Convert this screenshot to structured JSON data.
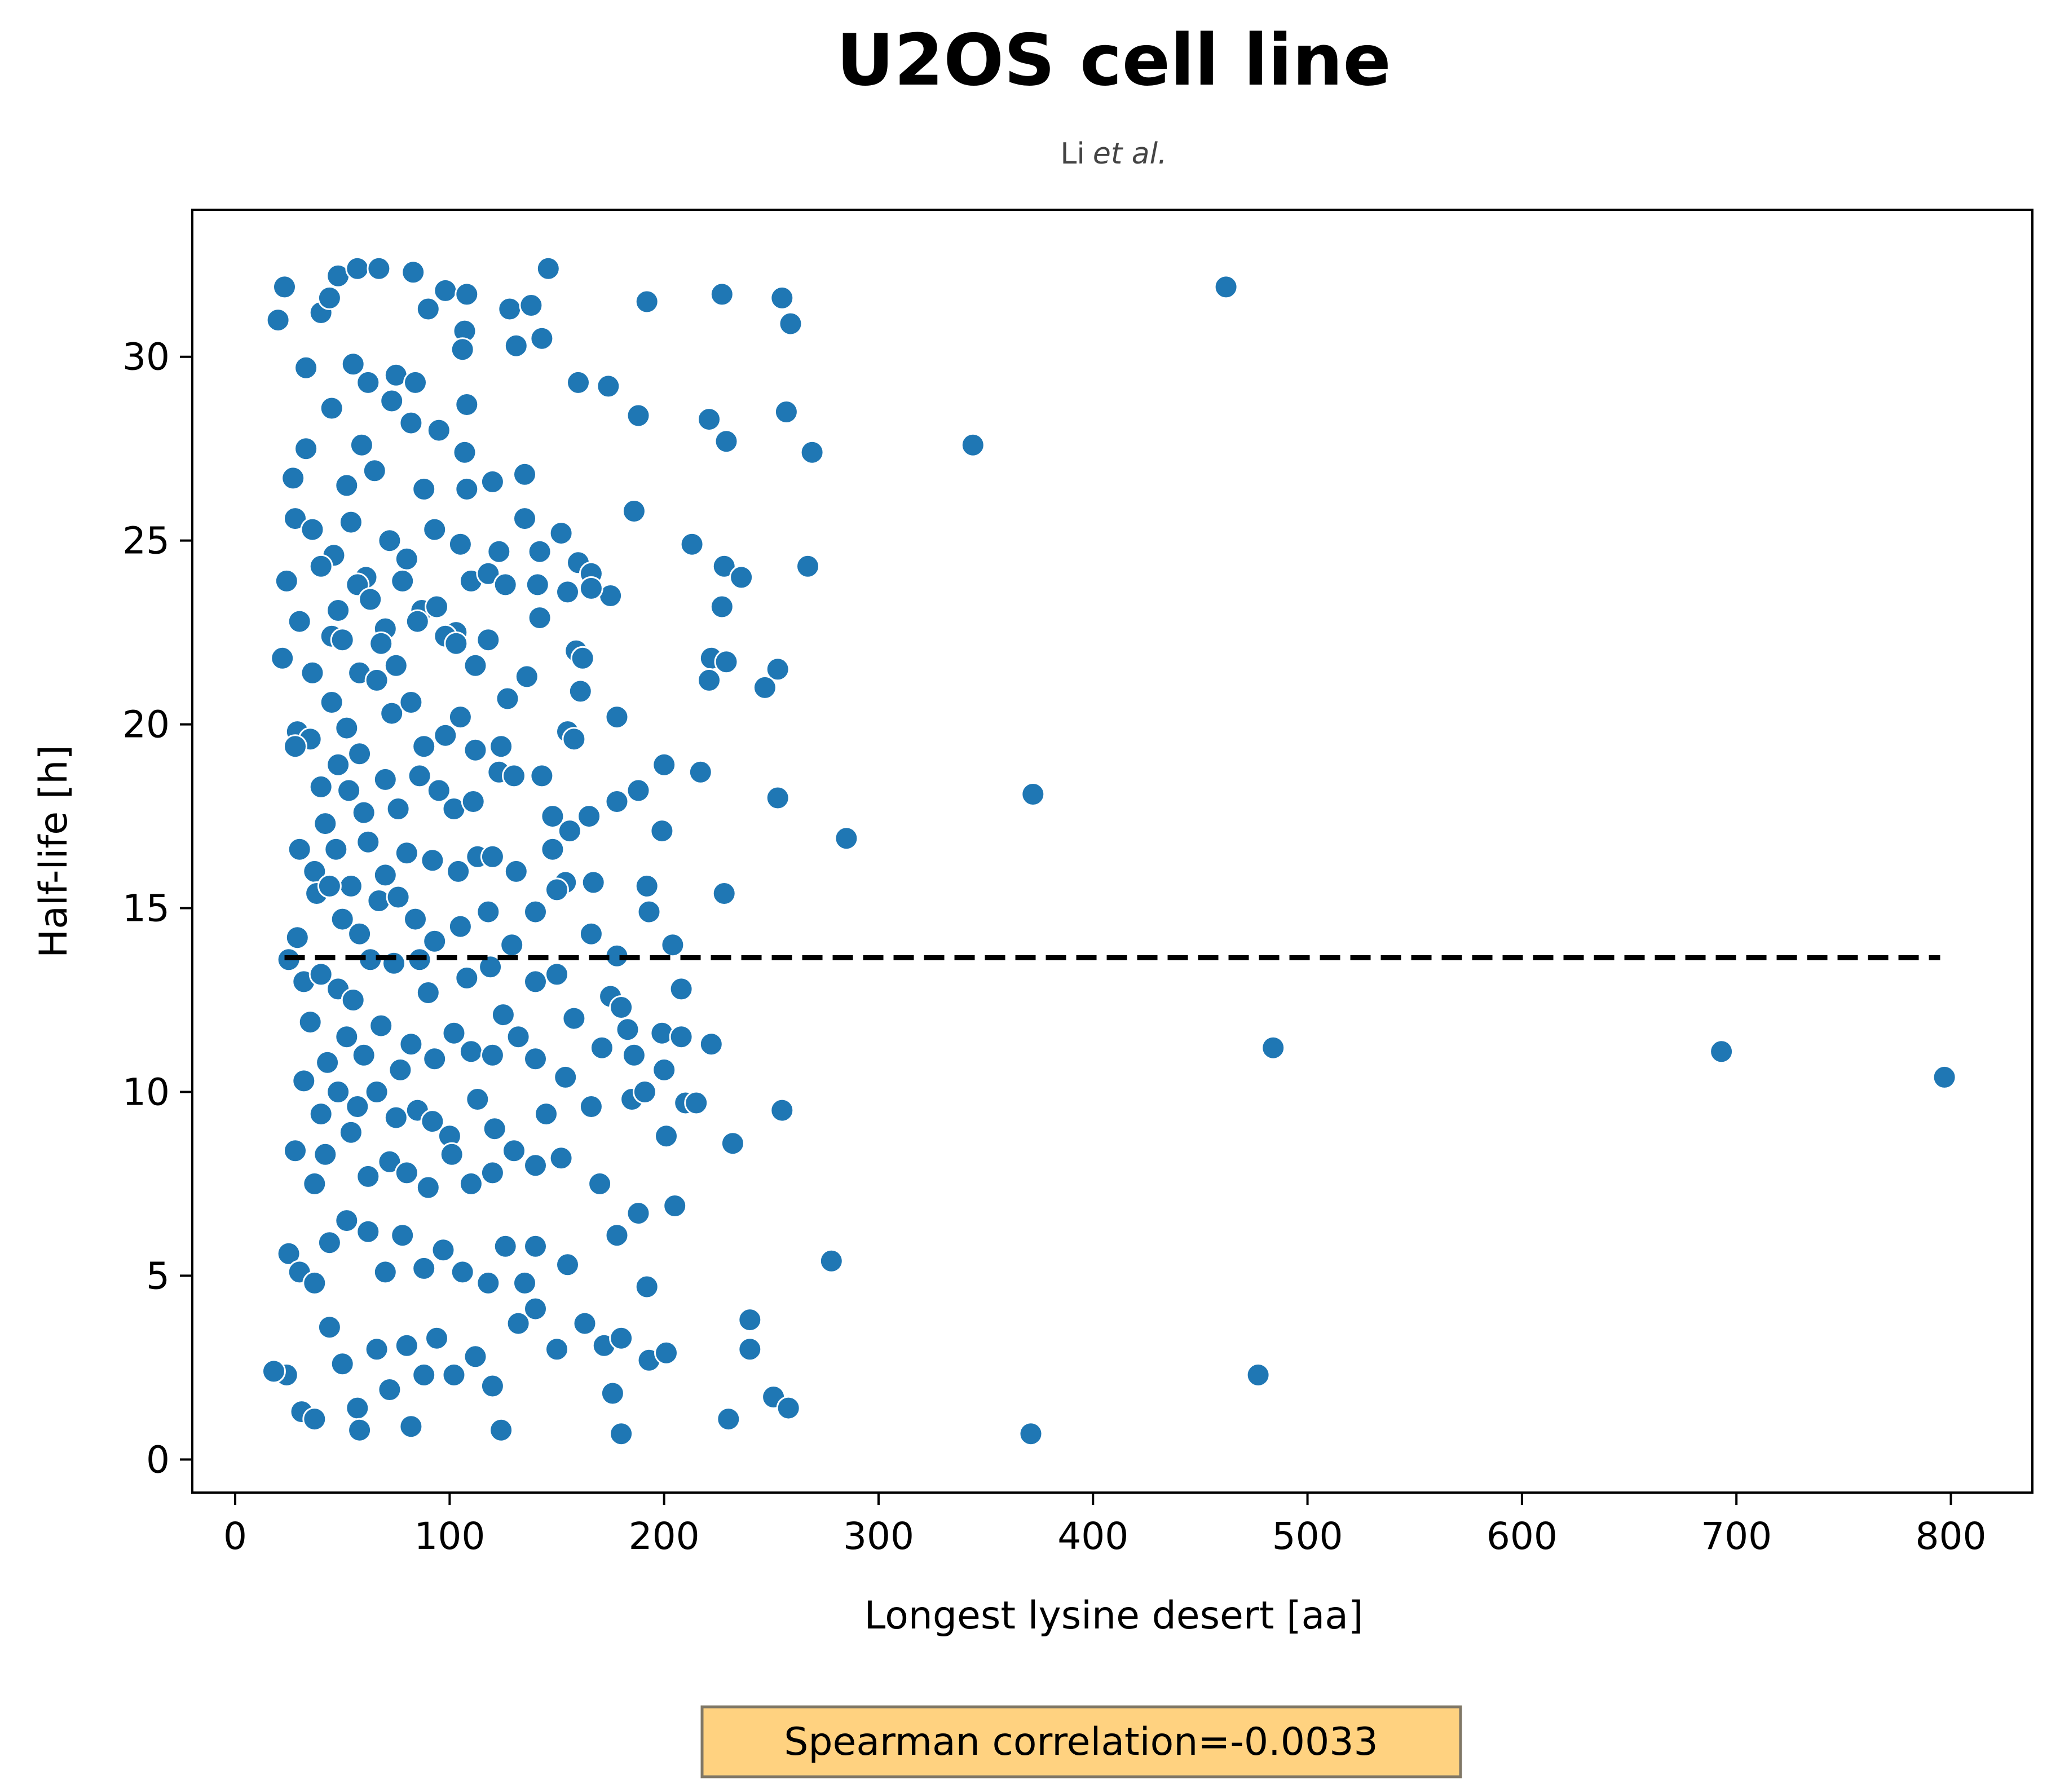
{
  "chart_data": {
    "type": "scatter",
    "title": "U2OS cell line",
    "subtitle": "Li",
    "subtitle_italic": "et al.",
    "xlabel": "Longest lysine desert [aa]",
    "ylabel": "Half-life [h]",
    "xlim": [
      -20,
      838
    ],
    "ylim": [
      -0.9,
      34.0
    ],
    "xticks": [
      0,
      100,
      200,
      300,
      400,
      500,
      600,
      700,
      800
    ],
    "yticks": [
      0,
      5,
      10,
      15,
      20,
      25,
      30
    ],
    "grid": false,
    "legend": "none",
    "marker_color": "#1f77b4",
    "annotation": "Spearman correlation=-0.0033",
    "annotation_bg": "#ffd280",
    "mean_line": {
      "y": 13.65,
      "x_start": 23,
      "x_end": 795,
      "style": "dashed",
      "color": "#000000"
    },
    "points": [
      [
        23,
        31.9
      ],
      [
        20,
        31.0
      ],
      [
        40,
        31.2
      ],
      [
        44,
        31.6
      ],
      [
        48,
        32.2
      ],
      [
        57,
        32.4
      ],
      [
        67,
        32.4
      ],
      [
        83,
        32.3
      ],
      [
        98,
        31.8
      ],
      [
        108,
        31.7
      ],
      [
        128,
        31.3
      ],
      [
        138,
        31.4
      ],
      [
        146,
        32.4
      ],
      [
        192,
        31.5
      ],
      [
        227,
        31.7
      ],
      [
        255,
        31.6
      ],
      [
        259,
        30.9
      ],
      [
        462,
        31.9
      ],
      [
        33,
        29.7
      ],
      [
        55,
        29.8
      ],
      [
        62,
        29.3
      ],
      [
        75,
        29.5
      ],
      [
        84,
        29.3
      ],
      [
        90,
        31.3
      ],
      [
        107,
        30.7
      ],
      [
        106,
        30.2
      ],
      [
        131,
        30.3
      ],
      [
        143,
        30.5
      ],
      [
        160,
        29.3
      ],
      [
        174,
        29.2
      ],
      [
        188,
        28.4
      ],
      [
        221,
        28.3
      ],
      [
        229,
        27.7
      ],
      [
        257,
        28.5
      ],
      [
        269,
        27.4
      ],
      [
        344,
        27.6
      ],
      [
        27,
        26.7
      ],
      [
        33,
        27.5
      ],
      [
        45,
        28.6
      ],
      [
        52,
        26.5
      ],
      [
        59,
        27.6
      ],
      [
        65,
        26.9
      ],
      [
        73,
        28.8
      ],
      [
        82,
        28.2
      ],
      [
        95,
        28.0
      ],
      [
        108,
        28.7
      ],
      [
        107,
        27.4
      ],
      [
        108,
        26.4
      ],
      [
        120,
        26.6
      ],
      [
        135,
        26.8
      ],
      [
        88,
        26.4
      ],
      [
        28,
        25.6
      ],
      [
        36,
        25.3
      ],
      [
        46,
        24.6
      ],
      [
        54,
        25.5
      ],
      [
        61,
        24.0
      ],
      [
        72,
        25.0
      ],
      [
        80,
        24.5
      ],
      [
        93,
        25.3
      ],
      [
        105,
        24.9
      ],
      [
        123,
        24.7
      ],
      [
        135,
        25.6
      ],
      [
        142,
        24.7
      ],
      [
        152,
        25.2
      ],
      [
        160,
        24.4
      ],
      [
        166,
        24.1
      ],
      [
        175,
        23.5
      ],
      [
        186,
        25.8
      ],
      [
        213,
        24.9
      ],
      [
        228,
        24.3
      ],
      [
        236,
        24.0
      ],
      [
        267,
        24.3
      ],
      [
        227,
        23.2
      ],
      [
        24,
        23.9
      ],
      [
        30,
        22.8
      ],
      [
        40,
        24.3
      ],
      [
        48,
        23.1
      ],
      [
        57,
        23.8
      ],
      [
        63,
        23.4
      ],
      [
        70,
        22.6
      ],
      [
        78,
        23.9
      ],
      [
        87,
        23.1
      ],
      [
        94,
        23.2
      ],
      [
        103,
        22.5
      ],
      [
        110,
        23.9
      ],
      [
        118,
        24.1
      ],
      [
        141,
        23.8
      ],
      [
        155,
        23.6
      ],
      [
        166,
        23.7
      ],
      [
        142,
        22.9
      ],
      [
        126,
        23.8
      ],
      [
        22,
        21.8
      ],
      [
        36,
        21.4
      ],
      [
        45,
        22.4
      ],
      [
        50,
        22.3
      ],
      [
        58,
        21.4
      ],
      [
        68,
        22.2
      ],
      [
        75,
        21.6
      ],
      [
        85,
        22.8
      ],
      [
        98,
        22.4
      ],
      [
        103,
        22.2
      ],
      [
        112,
        21.6
      ],
      [
        118,
        22.3
      ],
      [
        136,
        21.3
      ],
      [
        159,
        22.0
      ],
      [
        162,
        21.8
      ],
      [
        222,
        21.8
      ],
      [
        229,
        21.7
      ],
      [
        253,
        21.5
      ],
      [
        247,
        21.0
      ],
      [
        221,
        21.2
      ],
      [
        29,
        19.8
      ],
      [
        35,
        19.6
      ],
      [
        45,
        20.6
      ],
      [
        52,
        19.9
      ],
      [
        58,
        19.2
      ],
      [
        66,
        21.2
      ],
      [
        73,
        20.3
      ],
      [
        82,
        20.6
      ],
      [
        88,
        19.4
      ],
      [
        98,
        19.7
      ],
      [
        105,
        20.2
      ],
      [
        112,
        19.3
      ],
      [
        124,
        19.4
      ],
      [
        127,
        20.7
      ],
      [
        155,
        19.8
      ],
      [
        161,
        20.9
      ],
      [
        178,
        20.2
      ],
      [
        158,
        19.6
      ],
      [
        28,
        19.4
      ],
      [
        40,
        18.3
      ],
      [
        48,
        18.9
      ],
      [
        53,
        18.2
      ],
      [
        60,
        17.6
      ],
      [
        70,
        18.5
      ],
      [
        76,
        17.7
      ],
      [
        86,
        18.6
      ],
      [
        95,
        18.2
      ],
      [
        102,
        17.7
      ],
      [
        111,
        17.9
      ],
      [
        123,
        18.7
      ],
      [
        130,
        18.6
      ],
      [
        143,
        18.6
      ],
      [
        148,
        17.5
      ],
      [
        156,
        17.1
      ],
      [
        165,
        17.5
      ],
      [
        178,
        17.9
      ],
      [
        188,
        18.2
      ],
      [
        200,
        18.9
      ],
      [
        199,
        17.1
      ],
      [
        217,
        18.7
      ],
      [
        253,
        18.0
      ],
      [
        285,
        16.9
      ],
      [
        372,
        18.1
      ],
      [
        30,
        16.6
      ],
      [
        37,
        16.0
      ],
      [
        42,
        17.3
      ],
      [
        47,
        16.6
      ],
      [
        54,
        15.6
      ],
      [
        62,
        16.8
      ],
      [
        70,
        15.9
      ],
      [
        80,
        16.5
      ],
      [
        92,
        16.3
      ],
      [
        104,
        16.0
      ],
      [
        113,
        16.4
      ],
      [
        120,
        16.4
      ],
      [
        131,
        16.0
      ],
      [
        148,
        16.6
      ],
      [
        154,
        15.7
      ],
      [
        167,
        15.7
      ],
      [
        192,
        15.6
      ],
      [
        228,
        15.4
      ],
      [
        29,
        14.2
      ],
      [
        38,
        15.4
      ],
      [
        44,
        15.6
      ],
      [
        50,
        14.7
      ],
      [
        58,
        14.3
      ],
      [
        67,
        15.2
      ],
      [
        76,
        15.3
      ],
      [
        84,
        14.7
      ],
      [
        93,
        14.1
      ],
      [
        105,
        14.5
      ],
      [
        118,
        14.9
      ],
      [
        129,
        14.0
      ],
      [
        140,
        14.9
      ],
      [
        150,
        15.5
      ],
      [
        166,
        14.3
      ],
      [
        178,
        13.7
      ],
      [
        193,
        14.9
      ],
      [
        204,
        14.0
      ],
      [
        25,
        13.6
      ],
      [
        32,
        13.0
      ],
      [
        40,
        13.2
      ],
      [
        48,
        12.8
      ],
      [
        55,
        12.5
      ],
      [
        63,
        13.6
      ],
      [
        74,
        13.5
      ],
      [
        86,
        13.6
      ],
      [
        90,
        12.7
      ],
      [
        108,
        13.1
      ],
      [
        119,
        13.4
      ],
      [
        125,
        12.1
      ],
      [
        140,
        13.0
      ],
      [
        150,
        13.2
      ],
      [
        158,
        12.0
      ],
      [
        175,
        12.6
      ],
      [
        183,
        11.7
      ],
      [
        199,
        11.6
      ],
      [
        208,
        11.5
      ],
      [
        222,
        11.3
      ],
      [
        180,
        12.3
      ],
      [
        208,
        12.8
      ],
      [
        35,
        11.9
      ],
      [
        43,
        10.8
      ],
      [
        52,
        11.5
      ],
      [
        60,
        11.0
      ],
      [
        68,
        11.8
      ],
      [
        77,
        10.6
      ],
      [
        82,
        11.3
      ],
      [
        93,
        10.9
      ],
      [
        102,
        11.6
      ],
      [
        110,
        11.1
      ],
      [
        120,
        11.0
      ],
      [
        132,
        11.5
      ],
      [
        140,
        10.9
      ],
      [
        154,
        10.4
      ],
      [
        171,
        11.2
      ],
      [
        186,
        11.0
      ],
      [
        200,
        10.6
      ],
      [
        484,
        11.2
      ],
      [
        693,
        11.1
      ],
      [
        797,
        10.4
      ],
      [
        32,
        10.3
      ],
      [
        40,
        9.4
      ],
      [
        48,
        10.0
      ],
      [
        57,
        9.6
      ],
      [
        66,
        10.0
      ],
      [
        75,
        9.3
      ],
      [
        85,
        9.5
      ],
      [
        92,
        9.2
      ],
      [
        100,
        8.8
      ],
      [
        113,
        9.8
      ],
      [
        121,
        9.0
      ],
      [
        145,
        9.4
      ],
      [
        166,
        9.6
      ],
      [
        185,
        9.8
      ],
      [
        191,
        10.0
      ],
      [
        201,
        8.8
      ],
      [
        210,
        9.7
      ],
      [
        215,
        9.7
      ],
      [
        255,
        9.5
      ],
      [
        232,
        8.6
      ],
      [
        28,
        8.4
      ],
      [
        37,
        7.5
      ],
      [
        42,
        8.3
      ],
      [
        54,
        8.9
      ],
      [
        62,
        7.7
      ],
      [
        72,
        8.1
      ],
      [
        80,
        7.8
      ],
      [
        90,
        7.4
      ],
      [
        101,
        8.3
      ],
      [
        110,
        7.5
      ],
      [
        120,
        7.8
      ],
      [
        130,
        8.4
      ],
      [
        140,
        8.0
      ],
      [
        152,
        8.2
      ],
      [
        170,
        7.5
      ],
      [
        188,
        6.7
      ],
      [
        205,
        6.9
      ],
      [
        25,
        5.6
      ],
      [
        30,
        5.1
      ],
      [
        37,
        4.8
      ],
      [
        44,
        5.9
      ],
      [
        52,
        6.5
      ],
      [
        62,
        6.2
      ],
      [
        70,
        5.1
      ],
      [
        78,
        6.1
      ],
      [
        88,
        5.2
      ],
      [
        97,
        5.7
      ],
      [
        106,
        5.1
      ],
      [
        118,
        4.8
      ],
      [
        126,
        5.8
      ],
      [
        135,
        4.8
      ],
      [
        140,
        5.8
      ],
      [
        155,
        5.3
      ],
      [
        178,
        6.1
      ],
      [
        192,
        4.7
      ],
      [
        278,
        5.4
      ],
      [
        24,
        2.3
      ],
      [
        18,
        2.4
      ],
      [
        31,
        1.3
      ],
      [
        37,
        1.1
      ],
      [
        44,
        3.6
      ],
      [
        50,
        2.6
      ],
      [
        57,
        1.4
      ],
      [
        66,
        3.0
      ],
      [
        72,
        1.9
      ],
      [
        80,
        3.1
      ],
      [
        88,
        2.3
      ],
      [
        94,
        3.3
      ],
      [
        102,
        2.3
      ],
      [
        112,
        2.8
      ],
      [
        120,
        2.0
      ],
      [
        132,
        3.7
      ],
      [
        140,
        4.1
      ],
      [
        150,
        3.0
      ],
      [
        163,
        3.7
      ],
      [
        172,
        3.1
      ],
      [
        180,
        3.3
      ],
      [
        193,
        2.7
      ],
      [
        201,
        2.9
      ],
      [
        240,
        3.8
      ],
      [
        240,
        3.0
      ],
      [
        230,
        1.1
      ],
      [
        251,
        1.7
      ],
      [
        258,
        1.4
      ],
      [
        180,
        0.7
      ],
      [
        124,
        0.8
      ],
      [
        58,
        0.8
      ],
      [
        82,
        0.9
      ],
      [
        371,
        0.7
      ],
      [
        477,
        2.3
      ],
      [
        176,
        1.8
      ]
    ]
  }
}
